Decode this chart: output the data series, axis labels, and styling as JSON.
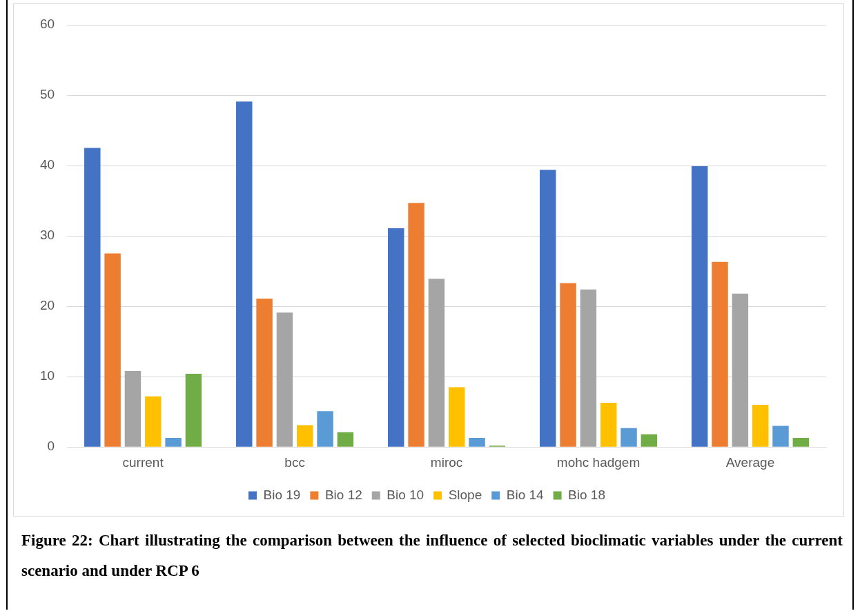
{
  "chart_data": {
    "type": "bar",
    "categories": [
      "current",
      "bcc",
      "miroc",
      "mohc hadgem",
      "Average"
    ],
    "series": [
      {
        "name": "Bio 19",
        "color": "#4472c4",
        "values": [
          42.5,
          49.1,
          31.1,
          39.4,
          39.9
        ]
      },
      {
        "name": "Bio 12",
        "color": "#ed7d31",
        "values": [
          27.5,
          21.1,
          34.7,
          23.3,
          26.3
        ]
      },
      {
        "name": "Bio 10",
        "color": "#a5a5a5",
        "values": [
          10.8,
          19.1,
          23.9,
          22.4,
          21.8
        ]
      },
      {
        "name": "Slope",
        "color": "#ffc000",
        "values": [
          7.2,
          3.1,
          8.5,
          6.3,
          6.0
        ]
      },
      {
        "name": "Bio 14",
        "color": "#5b9bd5",
        "values": [
          1.3,
          5.1,
          1.3,
          2.7,
          3.0
        ]
      },
      {
        "name": "Bio 18",
        "color": "#70ad47",
        "values": [
          10.4,
          2.1,
          0.2,
          1.8,
          1.3
        ]
      }
    ],
    "ylim": [
      0,
      60
    ],
    "yticks": [
      0,
      10,
      20,
      30,
      40,
      50,
      60
    ],
    "grid": "y",
    "legend": "bottom",
    "annotations": [
      "Figure 22: Chart illustrating the comparison between the influence of selected bioclimatic variables under the current scenario and under RCP 6"
    ]
  }
}
